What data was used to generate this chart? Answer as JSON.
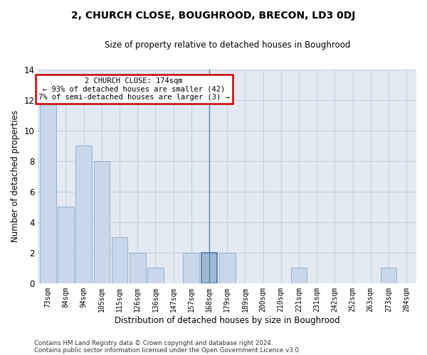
{
  "title": "2, CHURCH CLOSE, BOUGHROOD, BRECON, LD3 0DJ",
  "subtitle": "Size of property relative to detached houses in Boughrood",
  "xlabel": "Distribution of detached houses by size in Boughrood",
  "ylabel": "Number of detached properties",
  "bins": [
    "73sqm",
    "84sqm",
    "94sqm",
    "105sqm",
    "115sqm",
    "126sqm",
    "136sqm",
    "147sqm",
    "157sqm",
    "168sqm",
    "179sqm",
    "189sqm",
    "200sqm",
    "210sqm",
    "221sqm",
    "231sqm",
    "242sqm",
    "252sqm",
    "263sqm",
    "273sqm",
    "284sqm"
  ],
  "values": [
    12,
    5,
    9,
    8,
    3,
    2,
    1,
    0,
    2,
    2,
    2,
    0,
    0,
    0,
    1,
    0,
    0,
    0,
    0,
    1,
    0
  ],
  "highlight_bin_index": 9,
  "highlight_value": 2,
  "normal_bar_color": "#c8d8ea",
  "highlight_bar_color": "#9db8d2",
  "bar_edge_color": "#8aaac8",
  "highlight_edge_color": "#4a7aaa",
  "annotation_text": "2 CHURCH CLOSE: 174sqm\n← 93% of detached houses are smaller (42)\n7% of semi-detached houses are larger (3) →",
  "annotation_box_color": "#ffffff",
  "annotation_box_edge_color": "#cc0000",
  "ylim": [
    0,
    14
  ],
  "yticks": [
    0,
    2,
    4,
    6,
    8,
    10,
    12,
    14
  ],
  "grid_color": "#c8d0de",
  "bg_color": "#e4eaf4",
  "footer_line1": "Contains HM Land Registry data © Crown copyright and database right 2024.",
  "footer_line2": "Contains public sector information licensed under the Open Government Licence v3.0."
}
